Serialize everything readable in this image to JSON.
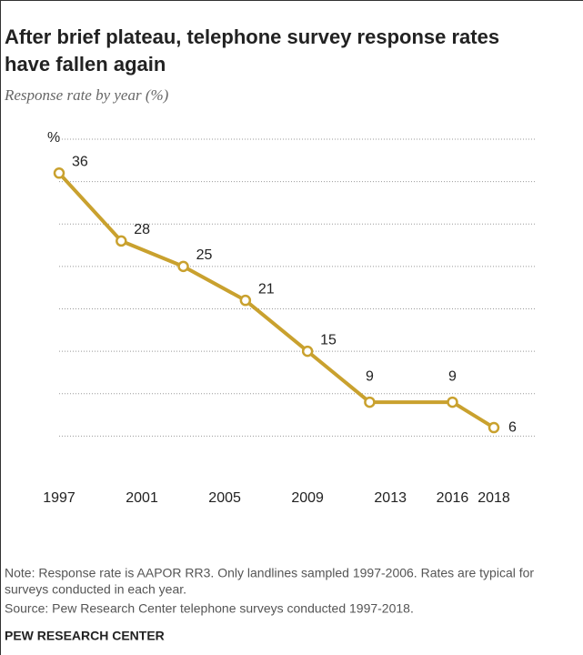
{
  "chart_data": {
    "type": "line",
    "title": [
      "After brief plateau, telephone survey response rates",
      "have fallen again"
    ],
    "subtitle": "Response rate by year (%)",
    "y_unit_label": "%",
    "x": [
      1997,
      2000,
      2003,
      2006,
      2009,
      2012,
      2016,
      2018
    ],
    "series": [
      {
        "name": "Response rate",
        "color": "#c9a12e",
        "values": [
          36,
          28,
          25,
          21,
          15,
          9,
          9,
          6
        ]
      }
    ],
    "xlim": [
      1997,
      2018
    ],
    "xticks": [
      1997,
      2001,
      2005,
      2009,
      2013,
      2016,
      2018
    ],
    "ylim": [
      0,
      40
    ],
    "yticks": [
      5,
      10,
      15,
      20,
      25,
      30,
      35,
      40
    ],
    "grid": true,
    "notes": [
      "Note: Response rate is AAPOR RR3. Only landlines sampled 1997-2006. Rates are typical for",
      "surveys conducted in each year.",
      "Source: Pew Research Center telephone surveys conducted 1997-2018."
    ],
    "source": "PEW RESEARCH CENTER"
  }
}
